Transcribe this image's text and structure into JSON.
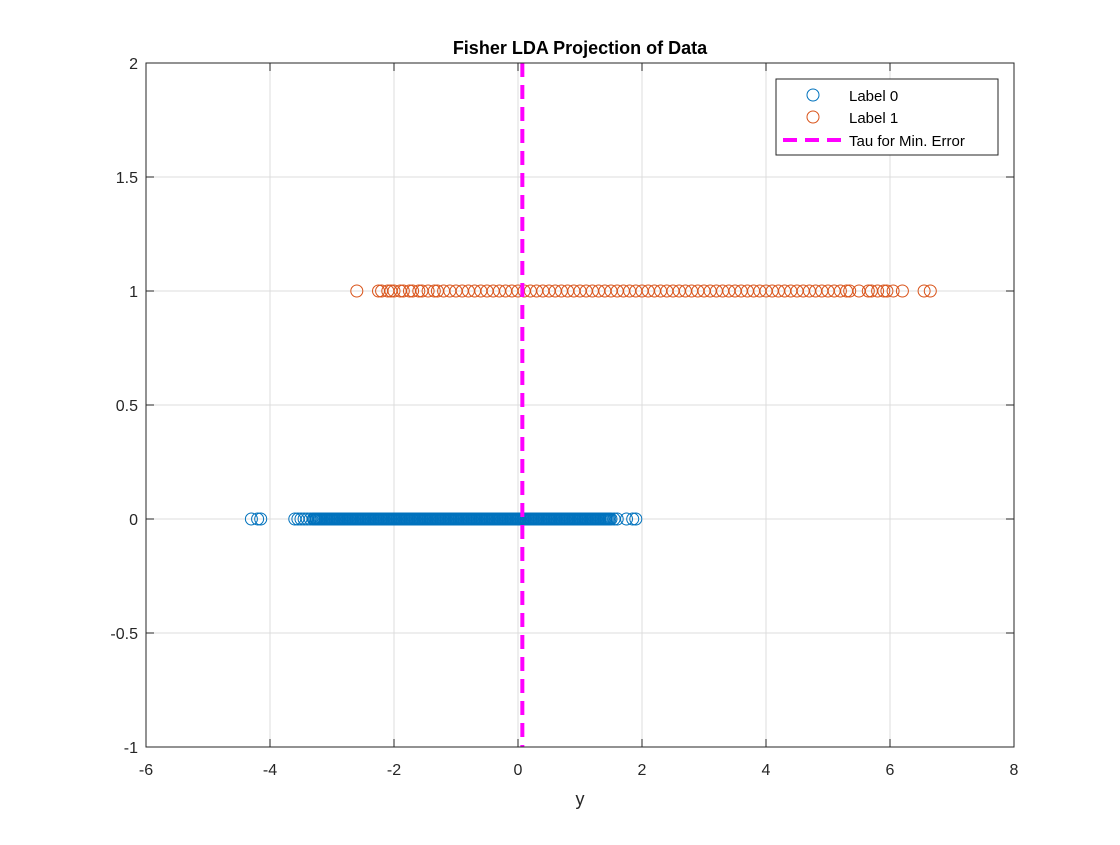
{
  "chart_data": {
    "type": "scatter",
    "title": "Fisher LDA Projection of Data",
    "xlabel": "y",
    "ylabel": "",
    "xlim": [
      -6,
      8
    ],
    "ylim": [
      -1,
      2
    ],
    "xticks": [
      -6,
      -4,
      -2,
      0,
      2,
      4,
      6,
      8
    ],
    "yticks": [
      -1,
      -0.5,
      0,
      0.5,
      1,
      1.5,
      2
    ],
    "xtick_labels": [
      "-6",
      "-4",
      "-2",
      "0",
      "2",
      "4",
      "6",
      "8"
    ],
    "ytick_labels": [
      "-1",
      "-0.5",
      "0",
      "0.5",
      "1",
      "1.5",
      "2"
    ],
    "grid": true,
    "legend_position": "top-right",
    "series": [
      {
        "name": "Label 0",
        "color": "#0072BD",
        "marker": "circle",
        "y_value": 0,
        "x": [
          -4.3,
          -4.2,
          -4.15,
          -3.6,
          -3.55,
          -3.5,
          -3.45,
          -3.4,
          -3.35,
          -3.3,
          -3.25,
          -3.2,
          -3.1,
          -3.0,
          -2.9,
          -2.8,
          -2.7,
          -2.6,
          -2.5,
          -2.4,
          -2.3,
          -2.2,
          -2.1,
          -2.0,
          -1.9,
          -1.8,
          -1.7,
          -1.6,
          -1.5,
          -1.4,
          -1.3,
          -1.2,
          -1.1,
          -1.0,
          -0.9,
          -0.8,
          -0.7,
          -0.6,
          -0.5,
          -0.4,
          -0.3,
          -0.2,
          -0.1,
          0.0,
          0.1,
          0.2,
          0.3,
          0.4,
          0.5,
          0.6,
          0.7,
          0.8,
          0.9,
          1.0,
          1.1,
          1.2,
          1.3,
          1.4,
          1.5,
          1.55,
          1.6,
          1.75,
          1.85,
          1.9
        ]
      },
      {
        "name": "Label 1",
        "color": "#D95319",
        "marker": "circle",
        "y_value": 1,
        "x": [
          -2.6,
          -2.25,
          -2.2,
          -2.1,
          -2.05,
          -2.0,
          -1.9,
          -1.85,
          -1.75,
          -1.7,
          -1.6,
          -1.55,
          -1.45,
          -1.35,
          -1.3,
          -1.2,
          -1.1,
          -1.0,
          -0.9,
          -0.8,
          -0.7,
          -0.6,
          -0.5,
          -0.4,
          -0.3,
          -0.2,
          -0.1,
          0.0,
          0.1,
          0.2,
          0.3,
          0.4,
          0.5,
          0.6,
          0.7,
          0.8,
          0.9,
          1.0,
          1.1,
          1.2,
          1.3,
          1.4,
          1.5,
          1.6,
          1.7,
          1.8,
          1.9,
          2.0,
          2.1,
          2.2,
          2.3,
          2.4,
          2.5,
          2.6,
          2.7,
          2.8,
          2.9,
          3.0,
          3.1,
          3.2,
          3.3,
          3.4,
          3.5,
          3.6,
          3.7,
          3.8,
          3.9,
          4.0,
          4.1,
          4.2,
          4.3,
          4.4,
          4.5,
          4.6,
          4.7,
          4.8,
          4.9,
          5.0,
          5.1,
          5.2,
          5.3,
          5.35,
          5.5,
          5.65,
          5.7,
          5.8,
          5.9,
          5.95,
          6.05,
          6.2,
          6.55,
          6.65
        ]
      },
      {
        "name": "Tau for Min. Error",
        "color": "#FF00FF",
        "line_style": "dashed",
        "type": "vertical_line",
        "x_value": 0.07
      }
    ]
  }
}
